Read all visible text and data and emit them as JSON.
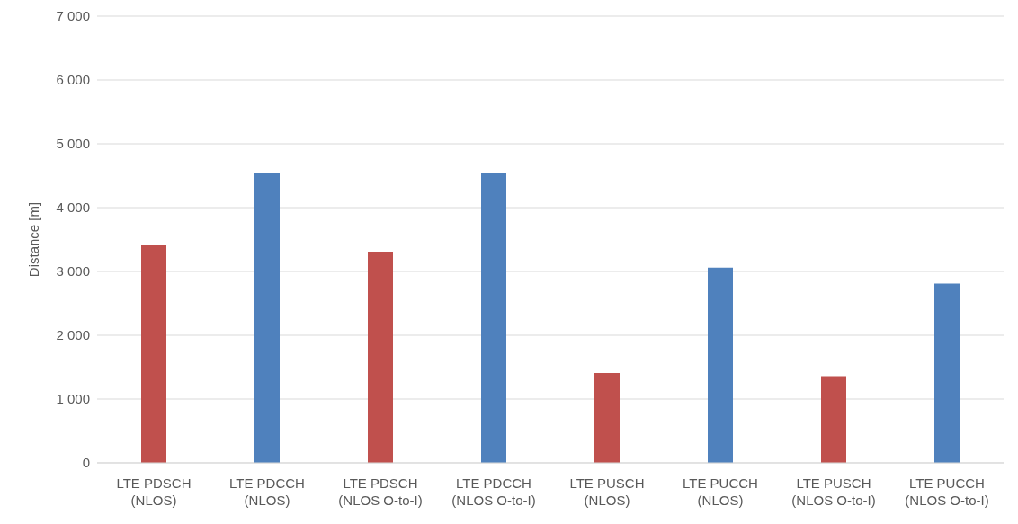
{
  "chart_data": {
    "type": "bar",
    "ylabel": "Distance [m]",
    "categories": [
      "LTE PDSCH\n(NLOS)",
      "LTE PDCCH\n(NLOS)",
      "LTE PDSCH\n(NLOS O-to-I)",
      "LTE PDCCH\n(NLOS O-to-I)",
      "LTE PUSCH\n(NLOS)",
      "LTE PUCCH\n(NLOS)",
      "LTE PUSCH\n(NLOS O-to-I)",
      "LTE PUCCH\n(NLOS O-to-I)"
    ],
    "values": [
      3410,
      4550,
      3310,
      4550,
      1410,
      3060,
      1360,
      2810
    ],
    "colors": [
      "#c0504d",
      "#4f81bd",
      "#c0504d",
      "#4f81bd",
      "#c0504d",
      "#4f81bd",
      "#c0504d",
      "#4f81bd"
    ],
    "ylim": [
      0,
      7000
    ],
    "yticks": [
      {
        "value": 0,
        "label": "0"
      },
      {
        "value": 1000,
        "label": "1 000"
      },
      {
        "value": 2000,
        "label": "2 000"
      },
      {
        "value": 3000,
        "label": "3 000"
      },
      {
        "value": 4000,
        "label": "4 000"
      },
      {
        "value": 5000,
        "label": "5 000"
      },
      {
        "value": 6000,
        "label": "6 000"
      },
      {
        "value": 7000,
        "label": "7 000"
      }
    ],
    "grid": "y",
    "legend": false
  }
}
